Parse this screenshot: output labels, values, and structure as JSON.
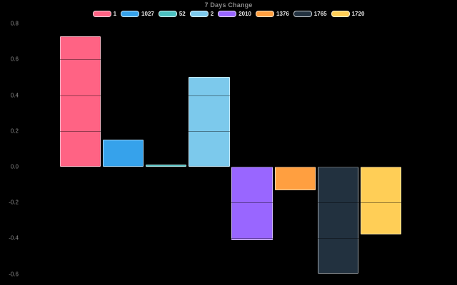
{
  "chart_data": {
    "type": "bar",
    "title": "7 Days Change",
    "categories": [
      "1",
      "1027",
      "52",
      "2",
      "2010",
      "1376",
      "1765",
      "1720"
    ],
    "series": [
      {
        "name": "7 Days Change",
        "values": [
          0.73,
          0.15,
          0.01,
          0.5,
          -0.41,
          -0.13,
          -0.6,
          -0.38
        ]
      }
    ],
    "bar_colors": [
      "#FF6384",
      "#36A2EB",
      "#4BC0C0",
      "#7CC9EC",
      "#9966FF",
      "#FF9F40",
      "#22313F",
      "#FFCE56"
    ],
    "yticks": [
      "0.8",
      "0.6",
      "0.4",
      "0.2",
      "0.0",
      "-0.2",
      "-0.4",
      "-0.6"
    ],
    "ylim": [
      -0.6,
      0.8
    ],
    "ytick_step": 0.2,
    "xlabel": "",
    "ylabel": "",
    "legend_position": "top",
    "grid": true,
    "grid_over_bars": true,
    "background_color": "#000000",
    "title_color": "#8c8c8c",
    "tick_label_color": "#8b8b8b",
    "legend_text_color": "#e8e8e8"
  }
}
